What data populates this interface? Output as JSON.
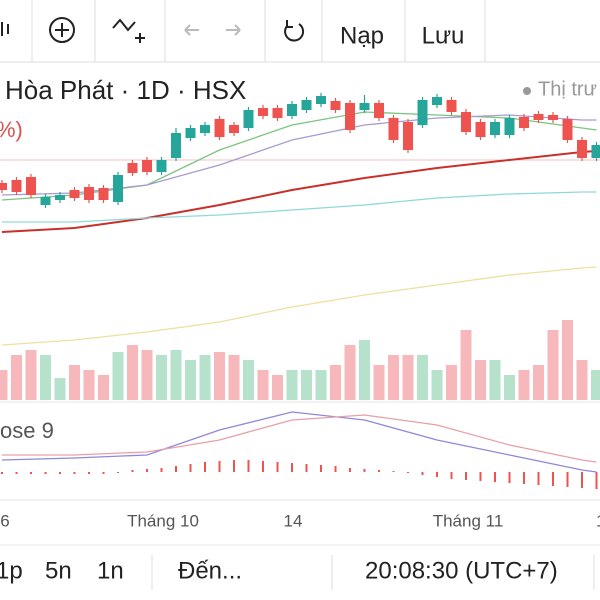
{
  "toolbar": {
    "buttons": [
      "Nạp",
      "Lưu"
    ]
  },
  "chart": {
    "title": "Hòa Phát · 1D · HSX",
    "legend": "Thị trư",
    "change": "%)",
    "indicator": "ose 9",
    "x_labels": [
      "6",
      "Tháng 10",
      "14",
      "Tháng 11",
      "1"
    ],
    "candles": [
      [
        117,
        120,
        107,
        110
      ],
      [
        120,
        123,
        105,
        108
      ],
      [
        123,
        126,
        102,
        105
      ],
      [
        95,
        106,
        92,
        103
      ],
      [
        100,
        108,
        97,
        105
      ],
      [
        110,
        113,
        99,
        102
      ],
      [
        113,
        116,
        97,
        100
      ],
      [
        112,
        115,
        97,
        100
      ],
      [
        98,
        128,
        95,
        125
      ],
      [
        137,
        140,
        124,
        127
      ],
      [
        140,
        143,
        125,
        128
      ],
      [
        128,
        143,
        125,
        140
      ],
      [
        142,
        172,
        139,
        167
      ],
      [
        162,
        175,
        159,
        172
      ],
      [
        167,
        178,
        164,
        175
      ],
      [
        181,
        184,
        160,
        163
      ],
      [
        175,
        178,
        164,
        167
      ],
      [
        172,
        193,
        169,
        190
      ],
      [
        192,
        195,
        181,
        184
      ],
      [
        192,
        195,
        179,
        182
      ],
      [
        184,
        199,
        181,
        196
      ],
      [
        190,
        203,
        187,
        200
      ],
      [
        196,
        207,
        193,
        204
      ],
      [
        199,
        202,
        187,
        190
      ],
      [
        197,
        200,
        167,
        170
      ],
      [
        190,
        205,
        187,
        197
      ],
      [
        197,
        200,
        179,
        182
      ],
      [
        182,
        185,
        157,
        160
      ],
      [
        178,
        181,
        147,
        150
      ],
      [
        175,
        203,
        172,
        200
      ],
      [
        195,
        206,
        192,
        203
      ],
      [
        200,
        203,
        185,
        188
      ],
      [
        188,
        191,
        165,
        168
      ],
      [
        178,
        181,
        160,
        163
      ],
      [
        165,
        181,
        162,
        178
      ],
      [
        165,
        185,
        162,
        182
      ],
      [
        183,
        186,
        169,
        172
      ],
      [
        186,
        189,
        177,
        180
      ],
      [
        185,
        188,
        177,
        180
      ],
      [
        181,
        184,
        157,
        160
      ],
      [
        160,
        163,
        139,
        142
      ],
      [
        142,
        158,
        139,
        155
      ]
    ],
    "volume": [
      30,
      45,
      50,
      45,
      22,
      35,
      30,
      25,
      48,
      55,
      50,
      45,
      50,
      40,
      45,
      48,
      45,
      40,
      30,
      25,
      30,
      30,
      30,
      35,
      55,
      60,
      35,
      45,
      45,
      45,
      30,
      35,
      70,
      40,
      40,
      25,
      30,
      35,
      70,
      80,
      40,
      30
    ],
    "macd_hist": [
      -2,
      -2,
      -2,
      -2,
      -2,
      -2,
      -2,
      -2,
      -1,
      2,
      3,
      4,
      6,
      8,
      10,
      11,
      12,
      12,
      11,
      10,
      9,
      8,
      7,
      6,
      4,
      3,
      2,
      1,
      -1,
      -3,
      -5,
      -7,
      -8,
      -9,
      -10,
      -11,
      -12,
      -13,
      -14,
      -15,
      -16,
      -17
    ],
    "line_x": [
      0,
      5,
      10,
      15,
      20,
      25,
      30,
      35,
      40,
      41
    ],
    "lines": [
      {
        "color": "#7cc47f",
        "values": [
          100,
          105,
          115,
          150,
          175,
          188,
          185,
          182,
          172,
          170
        ]
      },
      {
        "color": "#a79bd0",
        "values": [
          105,
          107,
          115,
          135,
          160,
          175,
          182,
          185,
          180,
          180
        ]
      },
      {
        "color": "#c9302c",
        "values": [
          68,
          72,
          82,
          95,
          110,
          122,
          132,
          140,
          148,
          149
        ]
      },
      {
        "color": "#8fd9d9",
        "values": [
          78,
          78,
          82,
          85,
          90,
          95,
          102,
          106,
          108,
          108
        ]
      },
      {
        "color": "#eee0a0",
        "values": [
          -45,
          -40,
          -32,
          -22,
          -7,
          5,
          15,
          25,
          32,
          33
        ]
      }
    ],
    "macd_lines": [
      {
        "color": "#8f88d8",
        "values": [
          12,
          14,
          17,
          42,
          60,
          52,
          32,
          17,
          2,
          0
        ]
      },
      {
        "color": "#e8a0a8",
        "values": [
          17,
          17,
          20,
          32,
          52,
          57,
          47,
          27,
          12,
          10
        ]
      }
    ]
  },
  "bottom_bar": {
    "intervals": [
      "1p",
      "5n",
      "1n"
    ],
    "date": "Đến...",
    "clock": "20:08:30 (UTC+7)"
  }
}
